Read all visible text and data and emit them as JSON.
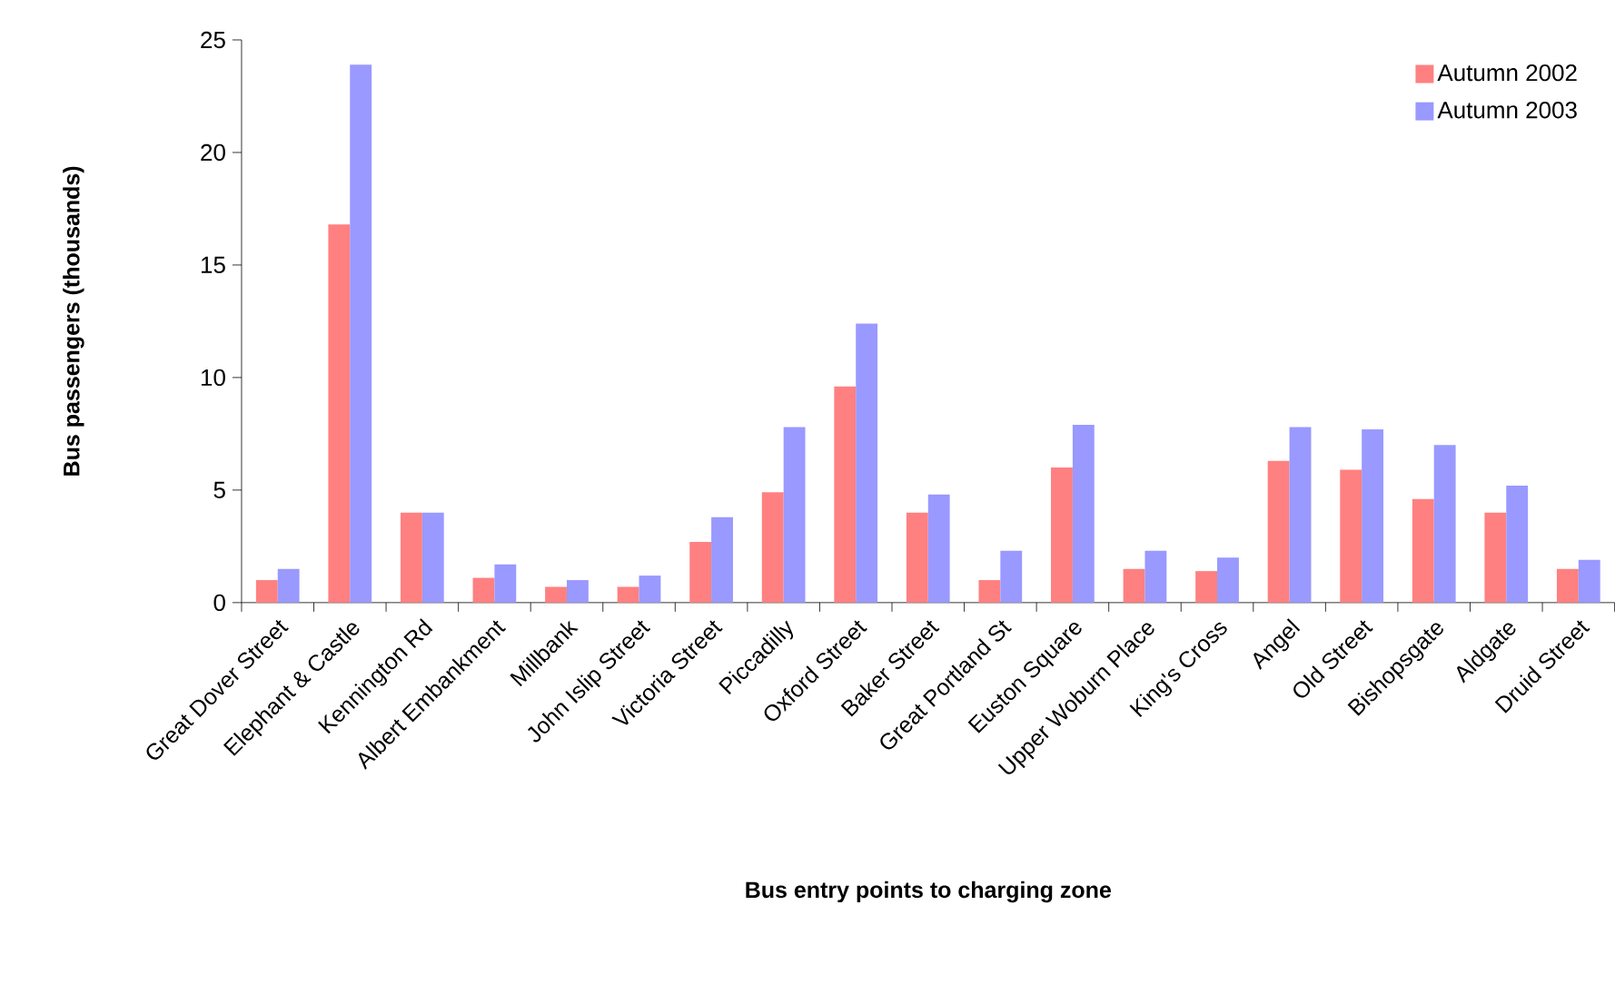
{
  "chart_data": {
    "type": "bar",
    "xlabel": "Bus entry points to charging zone",
    "ylabel": "Bus passengers (thousands)",
    "categories": [
      "Great Dover Street",
      "Elephant & Castle",
      "Kennington Rd",
      "Albert Embankment",
      "Millbank",
      "John Islip Street",
      "Victoria Street",
      "Piccadilly",
      "Oxford Street",
      "Baker Street",
      "Great Portland St",
      "Euston Square",
      "Upper Woburn Place",
      "King's Cross",
      "Angel",
      "Old Street",
      "Bishopsgate",
      "Aldgate",
      "Druid Street"
    ],
    "series": [
      {
        "name": "Autumn 2002",
        "color": "#ff8080",
        "values": [
          1.0,
          16.8,
          4.0,
          1.1,
          0.7,
          0.7,
          2.7,
          4.9,
          9.6,
          4.0,
          1.0,
          6.0,
          1.5,
          1.4,
          6.3,
          5.9,
          4.6,
          4.0,
          1.5
        ]
      },
      {
        "name": "Autumn 2003",
        "color": "#9999ff",
        "values": [
          1.5,
          23.9,
          4.0,
          1.7,
          1.0,
          1.2,
          3.8,
          7.8,
          12.4,
          4.8,
          2.3,
          7.9,
          2.3,
          2.0,
          7.8,
          7.7,
          7.0,
          5.2,
          1.9
        ]
      }
    ],
    "ylim": [
      0,
      25
    ],
    "yticks": [
      0,
      5,
      10,
      15,
      20,
      25
    ],
    "grid": false,
    "legend": "top right"
  }
}
